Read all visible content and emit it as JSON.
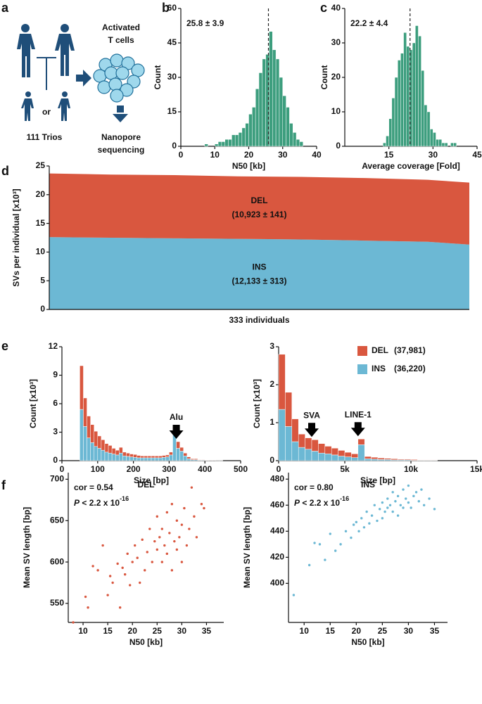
{
  "panel_labels": [
    "a",
    "b",
    "c",
    "d",
    "e",
    "f"
  ],
  "diagram": {
    "or": "or",
    "trios": "111 Trios",
    "cells_line1": "Activated",
    "cells_line2": "T cells",
    "seq_line1": "Nanopore",
    "seq_line2": "sequencing"
  },
  "chart_data": [
    {
      "type": "histogram",
      "x_label": "N50 [kb]",
      "y_label": "Count",
      "annotation": "25.8 ± 3.9",
      "color": "#3d9e7e",
      "vline": 25.8,
      "xlim": [
        0,
        40
      ],
      "xticks": [
        0,
        10,
        20,
        30,
        40
      ],
      "ylim": [
        0,
        60
      ],
      "yticks": [
        0,
        15,
        30,
        45,
        60
      ],
      "bins": [
        7,
        8,
        9,
        10,
        11,
        12,
        13,
        14,
        15,
        16,
        17,
        18,
        19,
        20,
        21,
        22,
        23,
        24,
        25,
        26,
        27,
        28,
        29,
        30,
        31,
        32,
        33,
        34,
        35,
        36
      ],
      "values": [
        1,
        0,
        0,
        1,
        2,
        2,
        3,
        3,
        5,
        5,
        6,
        8,
        10,
        14,
        17,
        25,
        32,
        38,
        40,
        50,
        42,
        38,
        30,
        22,
        17,
        10,
        6,
        3,
        2
      ]
    },
    {
      "type": "histogram",
      "x_label": "Average coverage [Fold]",
      "y_label": "Count",
      "annotation": "22.2 ± 4.4",
      "color": "#3d9e7e",
      "vline": 22.2,
      "xlim": [
        0,
        45
      ],
      "xticks": [
        15,
        30,
        45
      ],
      "ylim": [
        0,
        40
      ],
      "yticks": [
        0,
        10,
        20,
        30,
        40
      ],
      "bins": [
        13,
        14,
        15,
        16,
        17,
        18,
        19,
        20,
        21,
        22,
        23,
        24,
        25,
        26,
        27,
        28,
        29,
        30,
        31,
        32,
        33,
        34,
        35,
        36,
        37,
        38
      ],
      "values": [
        1,
        3,
        8,
        14,
        20,
        25,
        27,
        33,
        29,
        28,
        30,
        35,
        32,
        22,
        12,
        10,
        5,
        4,
        2,
        2,
        1,
        1,
        0,
        1,
        1
      ]
    },
    {
      "type": "area",
      "x_label": "333 individuals",
      "y_label": "SVs per individual [x10³]",
      "xlim": [
        1,
        333
      ],
      "ylim": [
        0,
        25
      ],
      "yticks": [
        0,
        5,
        10,
        15,
        20,
        25
      ],
      "x": [
        1,
        50,
        100,
        150,
        200,
        250,
        300,
        333
      ],
      "series": [
        {
          "name": "INS",
          "label": "(12,133 ± 313)",
          "color": "#6cb8d4",
          "values": [
            12.6,
            12.5,
            12.4,
            12.3,
            12.2,
            12.0,
            11.8,
            11.3
          ]
        },
        {
          "name": "DEL",
          "label": "(10,923 ± 141)",
          "color": "#d9573f",
          "values": [
            11.1,
            11.0,
            11.0,
            10.9,
            10.9,
            10.9,
            10.8,
            10.8
          ]
        }
      ]
    },
    {
      "type": "histogram",
      "x_label": "Size [bp]",
      "y_label": "Count [x10³]",
      "xlim": [
        0,
        500
      ],
      "xticks": [
        0,
        100,
        200,
        300,
        400,
        500
      ],
      "ylim": [
        0,
        12
      ],
      "yticks": [
        0,
        3,
        6,
        9,
        12
      ],
      "annotations": [
        {
          "text": "Alu",
          "x": 320
        }
      ],
      "bins": [
        50,
        60,
        70,
        80,
        90,
        100,
        110,
        120,
        130,
        140,
        150,
        160,
        170,
        180,
        190,
        200,
        210,
        220,
        230,
        240,
        250,
        260,
        270,
        280,
        290,
        300,
        310,
        320,
        330,
        340,
        350,
        360,
        370,
        380,
        390,
        400,
        410,
        420,
        430,
        440,
        450
      ],
      "series": [
        {
          "color": "#6cb8d4",
          "values": [
            5.4,
            3.6,
            2.4,
            1.9,
            1.5,
            1.3,
            1.1,
            0.9,
            0.8,
            0.7,
            0.6,
            0.8,
            0.5,
            0.45,
            0.4,
            0.35,
            0.3,
            0.3,
            0.3,
            0.3,
            0.3,
            0.3,
            0.3,
            0.35,
            0.4,
            0.6,
            2.9,
            1.3,
            1.0,
            0.5,
            0.2,
            0.1,
            0.1,
            0.05,
            0.05,
            0.03,
            0.02,
            0.02,
            0.01,
            0.01
          ]
        },
        {
          "color": "#d9573f",
          "values": [
            4.6,
            3.0,
            2.3,
            1.9,
            1.6,
            1.3,
            1.1,
            0.9,
            0.8,
            0.6,
            0.5,
            0.6,
            0.4,
            0.35,
            0.3,
            0.3,
            0.25,
            0.2,
            0.2,
            0.2,
            0.2,
            0.2,
            0.2,
            0.2,
            0.2,
            0.3,
            0.7,
            0.7,
            0.4,
            0.3,
            0.2,
            0.1,
            0.1,
            0.05,
            0.05,
            0.03,
            0.02,
            0.02,
            0.01,
            0.01
          ]
        }
      ]
    },
    {
      "type": "histogram",
      "x_label": "Size [bp]",
      "y_label": "Count [x10³]",
      "xlim": [
        0,
        15000
      ],
      "xticks": [
        0,
        {
          "value": 5000,
          "label": "5k"
        },
        {
          "value": 10000,
          "label": "10k"
        },
        {
          "value": 15000,
          "label": "15k"
        }
      ],
      "ylim": [
        0,
        3
      ],
      "yticks": [
        0,
        1,
        2,
        3
      ],
      "annotations": [
        {
          "text": "SVA",
          "x": 2500
        },
        {
          "text": "LINE-1",
          "x": 6000
        }
      ],
      "bins": [
        0,
        500,
        1000,
        1500,
        2000,
        2500,
        3000,
        3500,
        4000,
        4500,
        5000,
        5500,
        6000,
        6500,
        7000,
        7500,
        8000,
        8500,
        9000,
        9500,
        10000,
        10500,
        11000,
        11500,
        12000
      ],
      "series": [
        {
          "name": "INS",
          "count_label": "(36,220)",
          "color": "#6cb8d4",
          "values": [
            1.35,
            0.9,
            0.5,
            0.35,
            0.3,
            0.25,
            0.2,
            0.18,
            0.15,
            0.12,
            0.1,
            0.08,
            0.42,
            0.05,
            0.04,
            0.03,
            0.03,
            0.02,
            0.02,
            0.02,
            0.01,
            0.01,
            0.01,
            0.01
          ]
        },
        {
          "name": "DEL",
          "count_label": "(37,981)",
          "color": "#d9573f",
          "values": [
            1.45,
            0.9,
            0.6,
            0.35,
            0.3,
            0.3,
            0.25,
            0.2,
            0.18,
            0.15,
            0.12,
            0.1,
            0.15,
            0.06,
            0.05,
            0.04,
            0.03,
            0.03,
            0.02,
            0.02,
            0.02,
            0.01,
            0.01,
            0.01
          ]
        }
      ]
    },
    {
      "type": "scatter",
      "title": "DEL",
      "color": "#d9573f",
      "x_label": "N50 [kb]",
      "y_label": "Mean SV length [bp]",
      "stat_cor": "cor = 0.54",
      "p_symbol": "P",
      "p_text": " < 2.2 x 10",
      "p_exp": "-16",
      "xlim": [
        7,
        38.5
      ],
      "xticks": [
        10,
        15,
        20,
        25,
        30,
        35
      ],
      "ylim": [
        527,
        708
      ],
      "yticks": [
        550,
        600,
        650,
        700
      ],
      "x": [
        8,
        10.5,
        11,
        12,
        13,
        14,
        15,
        15.5,
        16,
        17,
        17.5,
        18,
        18.5,
        19,
        19.5,
        20,
        20.5,
        21,
        21.5,
        22,
        22.5,
        23,
        23.5,
        24,
        24.5,
        25,
        25,
        25.5,
        26,
        26,
        26.5,
        27,
        27,
        27.5,
        28,
        28,
        28.5,
        29,
        29,
        29.5,
        30,
        30,
        30.5,
        31,
        31.5,
        32,
        32.5,
        33,
        34,
        34.5
      ],
      "y": [
        527,
        558,
        545,
        595,
        590,
        620,
        560,
        583,
        575,
        598,
        545,
        593,
        585,
        610,
        572,
        600,
        620,
        605,
        575,
        627,
        590,
        612,
        640,
        600,
        625,
        615,
        655,
        630,
        600,
        640,
        620,
        660,
        610,
        635,
        590,
        670,
        625,
        650,
        615,
        630,
        600,
        645,
        665,
        620,
        640,
        690,
        655,
        630,
        670,
        665
      ]
    },
    {
      "type": "scatter",
      "title": "INS",
      "color": "#6cb8d4",
      "x_label": "N50 [kb]",
      "y_label": "Mean SV length [bp]",
      "stat_cor": "cor = 0.80",
      "p_symbol": "P",
      "p_text": " < 2.2 x 10",
      "p_exp": "-16",
      "xlim": [
        7,
        37.5
      ],
      "xticks": [
        10,
        15,
        20,
        25,
        30,
        35
      ],
      "ylim": [
        370,
        485
      ],
      "yticks": [
        400,
        420,
        440,
        460,
        480
      ],
      "x": [
        8,
        11,
        12,
        13,
        14,
        15,
        16,
        17,
        18,
        19,
        19.5,
        20,
        20.5,
        21,
        21.5,
        22,
        22.5,
        23,
        23.5,
        24,
        24.5,
        25,
        25,
        25.5,
        26,
        26,
        26.5,
        27,
        27,
        27.5,
        28,
        28,
        28.5,
        29,
        29,
        29.5,
        30,
        30,
        30.5,
        31,
        31.5,
        32,
        32.5,
        33,
        34,
        35
      ],
      "y": [
        391,
        414,
        431,
        430,
        418,
        438,
        425,
        430,
        440,
        435,
        445,
        447,
        440,
        450,
        443,
        455,
        446,
        452,
        460,
        448,
        457,
        462,
        450,
        455,
        465,
        458,
        460,
        470,
        455,
        463,
        467,
        452,
        460,
        472,
        458,
        465,
        462,
        475,
        458,
        467,
        470,
        463,
        472,
        460,
        465,
        457
      ]
    }
  ]
}
